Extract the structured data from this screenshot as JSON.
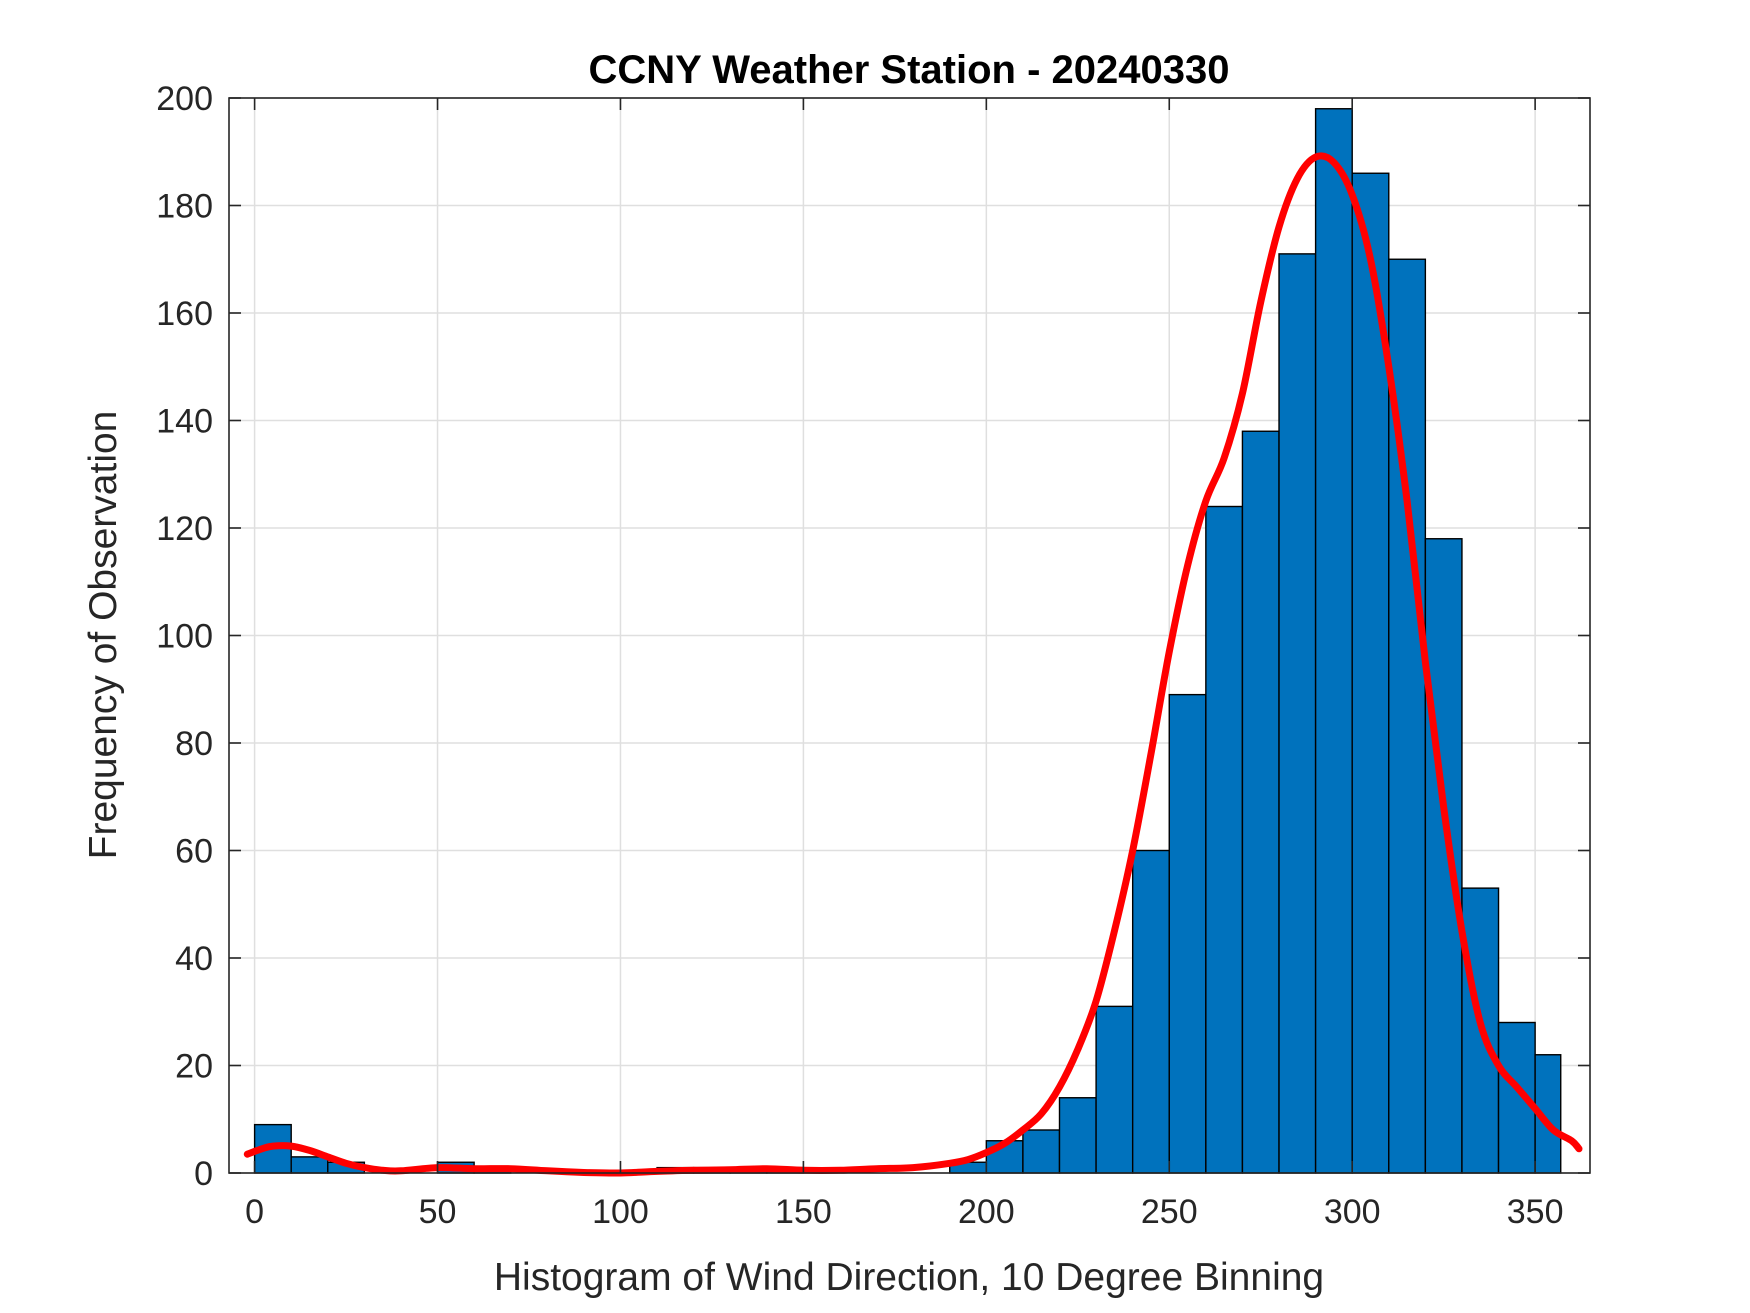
{
  "chart_data": {
    "type": "bar",
    "title": "CCNY Weather Station - 20240330",
    "xlabel": "Histogram of Wind Direction, 10 Degree Binning",
    "ylabel": "Frequency of Observation",
    "xlim": [
      -7,
      365
    ],
    "ylim": [
      0,
      200
    ],
    "xticks": [
      0,
      50,
      100,
      150,
      200,
      250,
      300,
      350
    ],
    "yticks": [
      0,
      20,
      40,
      60,
      80,
      100,
      120,
      140,
      160,
      180,
      200
    ],
    "grid": true,
    "bin_width": 10,
    "bin_edges": [
      0,
      10,
      20,
      30,
      40,
      50,
      60,
      70,
      80,
      90,
      100,
      110,
      120,
      130,
      140,
      150,
      160,
      170,
      180,
      190,
      200,
      210,
      220,
      230,
      240,
      250,
      260,
      270,
      280,
      290,
      300,
      310,
      320,
      330,
      340,
      350,
      357
    ],
    "values": [
      9,
      3,
      2,
      0,
      0,
      2,
      1,
      0,
      0,
      0,
      0,
      1,
      1,
      1,
      1,
      0,
      0,
      0,
      0,
      2,
      6,
      8,
      14,
      31,
      60,
      89,
      124,
      138,
      171,
      198,
      186,
      170,
      118,
      53,
      28,
      22
    ],
    "bar_color": "#0072BD",
    "series": [
      {
        "type": "line",
        "color": "#FF0000",
        "x": [
          -2,
          2,
          5,
          10,
          15,
          20,
          25,
          30,
          35,
          40,
          50,
          60,
          70,
          80,
          90,
          100,
          110,
          120,
          130,
          140,
          150,
          160,
          170,
          180,
          190,
          195,
          200,
          205,
          210,
          215,
          220,
          225,
          230,
          235,
          240,
          245,
          250,
          255,
          260,
          265,
          270,
          275,
          280,
          285,
          290,
          295,
          300,
          305,
          310,
          315,
          320,
          325,
          330,
          335,
          340,
          345,
          350,
          355,
          360,
          362
        ],
        "y": [
          3.5,
          4.5,
          5,
          5,
          4.2,
          3,
          1.8,
          1,
          0.5,
          0.4,
          1,
          0.8,
          0.8,
          0.4,
          0.1,
          0,
          0.3,
          0.5,
          0.6,
          0.8,
          0.5,
          0.5,
          0.8,
          1,
          1.8,
          2.5,
          3.8,
          5.5,
          8,
          11,
          16,
          23,
          32,
          45,
          60,
          78,
          97,
          113,
          125,
          133,
          145,
          162,
          176,
          185,
          189,
          188,
          182,
          170,
          150,
          125,
          95,
          68,
          45,
          28,
          20,
          16,
          12,
          8,
          6,
          4.5
        ]
      }
    ]
  }
}
